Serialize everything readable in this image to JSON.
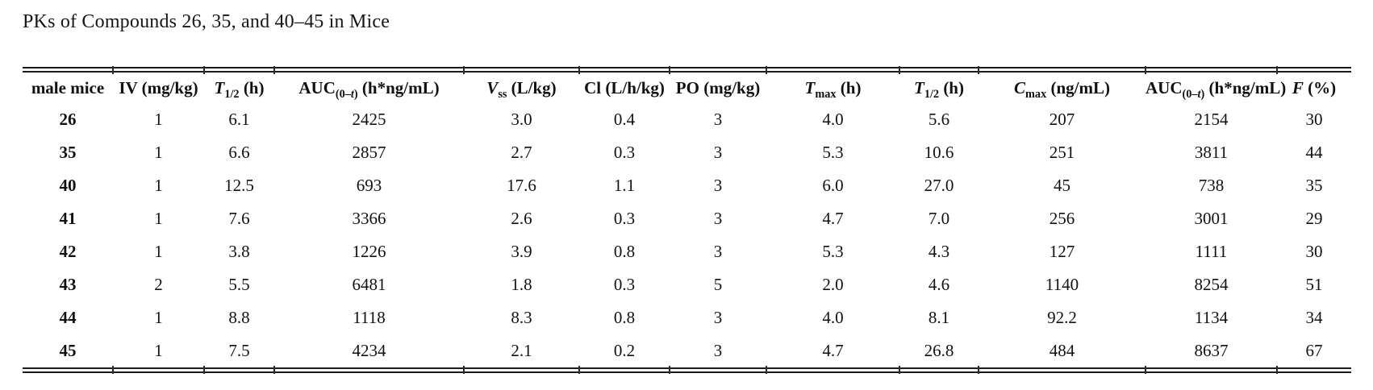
{
  "page": {
    "title": "PKs of Compounds 26, 35, and 40–45 in Mice"
  },
  "table": {
    "headers": [
      {
        "label": "male mice",
        "segments": [
          {
            "t": "male mice"
          }
        ]
      },
      {
        "label": "IV (mg/kg)",
        "segments": [
          {
            "t": "IV (mg/kg)"
          }
        ]
      },
      {
        "label": "T1/2 (h)",
        "segments": [
          {
            "t": "T",
            "s": "i"
          },
          {
            "t": "1/2",
            "s": "sub"
          },
          {
            "t": " (h)"
          }
        ]
      },
      {
        "label": "AUC(0–t) (h*ng/mL)",
        "segments": [
          {
            "t": "AUC"
          },
          {
            "t": "(0–",
            "s": "sub"
          },
          {
            "t": "t",
            "s": "subi"
          },
          {
            "t": ")",
            "s": "sub"
          },
          {
            "t": " (h*ng/mL)"
          }
        ]
      },
      {
        "label": "Vss (L/kg)",
        "segments": [
          {
            "t": "V",
            "s": "i"
          },
          {
            "t": "ss",
            "s": "sub"
          },
          {
            "t": " (L/kg)"
          }
        ]
      },
      {
        "label": "Cl (L/h/kg)",
        "segments": [
          {
            "t": "Cl (L/h/kg)"
          }
        ]
      },
      {
        "label": "PO (mg/kg)",
        "segments": [
          {
            "t": "PO (mg/kg)"
          }
        ]
      },
      {
        "label": "Tmax (h)",
        "segments": [
          {
            "t": "T",
            "s": "i"
          },
          {
            "t": "max",
            "s": "sub"
          },
          {
            "t": " (h)"
          }
        ]
      },
      {
        "label": "T1/2 (h)",
        "segments": [
          {
            "t": "T",
            "s": "i"
          },
          {
            "t": "1/2",
            "s": "sub"
          },
          {
            "t": " (h)"
          }
        ]
      },
      {
        "label": "Cmax (ng/mL)",
        "segments": [
          {
            "t": "C",
            "s": "i"
          },
          {
            "t": "max",
            "s": "sub"
          },
          {
            "t": " (ng/mL)"
          }
        ]
      },
      {
        "label": "AUC(0–t) (h*ng/mL)",
        "segments": [
          {
            "t": "AUC"
          },
          {
            "t": "(0–",
            "s": "sub"
          },
          {
            "t": "t",
            "s": "subi"
          },
          {
            "t": ")",
            "s": "sub"
          },
          {
            "t": " (h*ng/mL)"
          }
        ]
      },
      {
        "label": "F (%)",
        "segments": [
          {
            "t": "F",
            "s": "i"
          },
          {
            "t": " (%)"
          }
        ]
      }
    ],
    "rows": [
      [
        "26",
        "1",
        "6.1",
        "2425",
        "3.0",
        "0.4",
        "3",
        "4.0",
        "5.6",
        "207",
        "2154",
        "30"
      ],
      [
        "35",
        "1",
        "6.6",
        "2857",
        "2.7",
        "0.3",
        "3",
        "5.3",
        "10.6",
        "251",
        "3811",
        "44"
      ],
      [
        "40",
        "1",
        "12.5",
        "693",
        "17.6",
        "1.1",
        "3",
        "6.0",
        "27.0",
        "45",
        "738",
        "35"
      ],
      [
        "41",
        "1",
        "7.6",
        "3366",
        "2.6",
        "0.3",
        "3",
        "4.7",
        "7.0",
        "256",
        "3001",
        "29"
      ],
      [
        "42",
        "1",
        "3.8",
        "1226",
        "3.9",
        "0.8",
        "3",
        "5.3",
        "4.3",
        "127",
        "1111",
        "30"
      ],
      [
        "43",
        "2",
        "5.5",
        "6481",
        "1.8",
        "0.3",
        "5",
        "2.0",
        "4.6",
        "1140",
        "8254",
        "51"
      ],
      [
        "44",
        "1",
        "8.8",
        "1118",
        "8.3",
        "0.8",
        "3",
        "4.0",
        "8.1",
        "92.2",
        "1134",
        "34"
      ],
      [
        "45",
        "1",
        "7.5",
        "4234",
        "2.1",
        "0.2",
        "3",
        "4.7",
        "26.8",
        "484",
        "8637",
        "67"
      ]
    ]
  },
  "colors": {
    "text": "#111111",
    "rule": "#1b1b1b",
    "background": "#ffffff"
  }
}
